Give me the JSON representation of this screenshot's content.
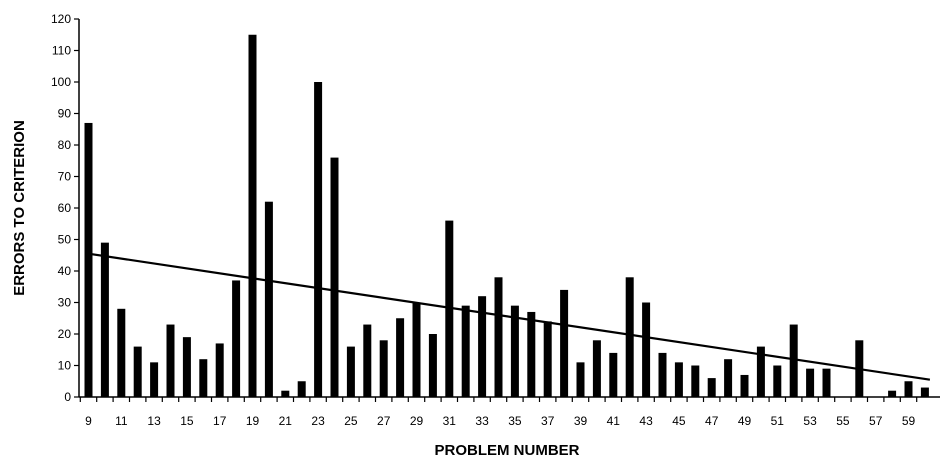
{
  "chart_data": {
    "type": "bar",
    "xlabel": "PROBLEM NUMBER",
    "ylabel": "ERRORS TO CRITERION",
    "title": "",
    "ylim": [
      0,
      120
    ],
    "y_ticks": [
      0,
      10,
      20,
      30,
      40,
      50,
      60,
      70,
      80,
      90,
      100,
      110,
      120
    ],
    "x_tick_labels": [
      "9",
      "11",
      "13",
      "15",
      "17",
      "19",
      "21",
      "23",
      "25",
      "27",
      "29",
      "31",
      "33",
      "35",
      "37",
      "39",
      "41",
      "43",
      "45",
      "47",
      "49",
      "51",
      "53",
      "55",
      "57",
      "59"
    ],
    "categories": [
      9,
      10,
      11,
      12,
      13,
      14,
      15,
      16,
      17,
      18,
      19,
      20,
      21,
      22,
      23,
      24,
      25,
      26,
      27,
      28,
      29,
      30,
      31,
      32,
      33,
      34,
      35,
      36,
      37,
      38,
      39,
      40,
      41,
      42,
      43,
      44,
      45,
      46,
      47,
      48,
      49,
      50,
      51,
      52,
      53,
      54,
      55,
      56,
      57,
      58,
      59,
      60
    ],
    "values": [
      87,
      49,
      28,
      16,
      11,
      23,
      19,
      12,
      17,
      37,
      115,
      62,
      2,
      5,
      100,
      76,
      16,
      23,
      18,
      25,
      30,
      20,
      56,
      29,
      32,
      38,
      29,
      27,
      24,
      34,
      11,
      18,
      14,
      38,
      30,
      14,
      11,
      10,
      6,
      12,
      7,
      16,
      10,
      23,
      9,
      9,
      0,
      18,
      0,
      2,
      5,
      3
    ],
    "trendline": {
      "x": [
        9,
        60
      ],
      "y": [
        45.5,
        5.5
      ]
    },
    "grid": false,
    "bar_color": "#000000"
  }
}
